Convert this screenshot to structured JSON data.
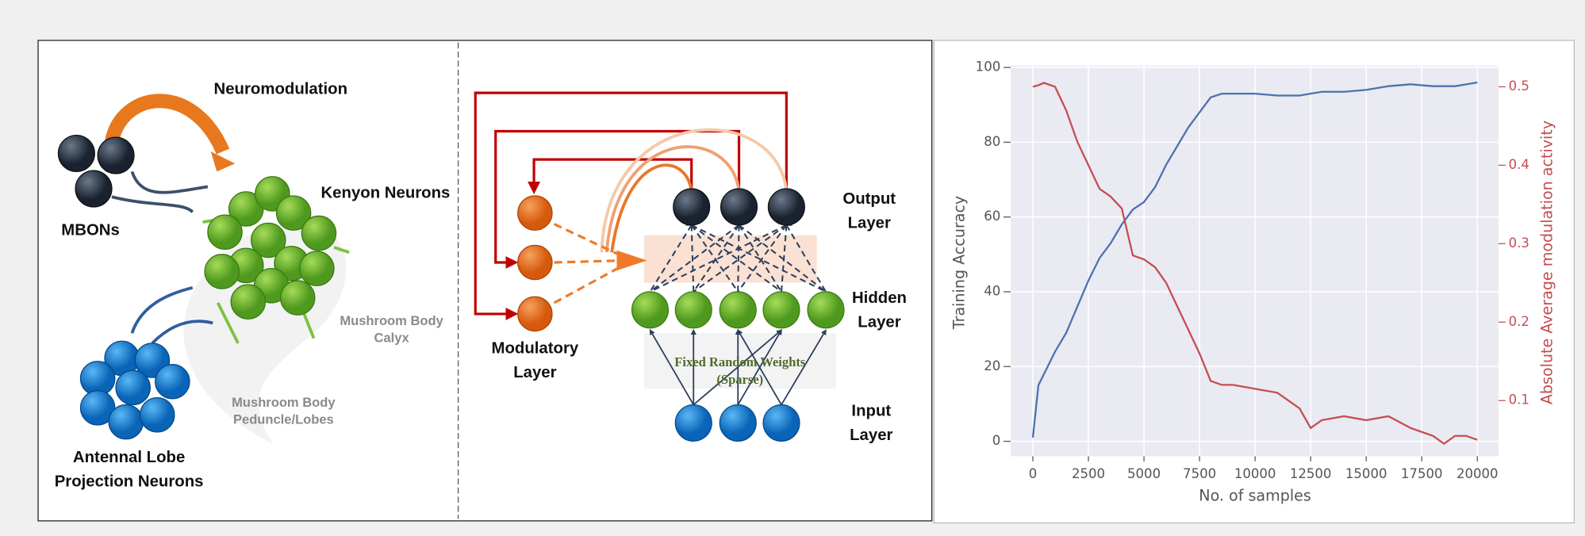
{
  "diagram": {
    "neuromodulation": "Neuromodulation",
    "kenyon": "Kenyon Neurons",
    "mbons": "MBONs",
    "calyx": [
      "Mushroom Body",
      "Calyx"
    ],
    "peduncle": [
      "Mushroom Body",
      "Peduncle/Lobes"
    ],
    "antennal": [
      "Antennal Lobe",
      "Projection Neurons"
    ],
    "output_layer": [
      "Output",
      "Layer"
    ],
    "hidden_layer": [
      "Hidden",
      "Layer"
    ],
    "modulatory_layer": [
      "Modulatory",
      "Layer"
    ],
    "fixed_weights": [
      "Fixed Random Weights",
      "(Sparse)"
    ],
    "input_layer": [
      "Input",
      "Layer"
    ]
  },
  "chart_data": {
    "type": "line",
    "xlabel": "No. of samples",
    "ylabel": "Training Accuracy",
    "y2label": "Absolute Average modulation activity",
    "xlim": [
      -1000,
      20950
    ],
    "ylim": [
      -4,
      100.5
    ],
    "y2lim": [
      0.029,
      0.527
    ],
    "xticks": [
      0,
      2500,
      5000,
      7500,
      10000,
      12500,
      15000,
      17500,
      20000
    ],
    "yticks": [
      0,
      20,
      40,
      60,
      80,
      100
    ],
    "y2ticks": [
      0.1,
      0.2,
      0.3,
      0.4,
      0.5
    ],
    "grid": true,
    "x": [
      0,
      250,
      500,
      1000,
      1500,
      2000,
      2500,
      3000,
      3500,
      4000,
      4500,
      5000,
      5500,
      6000,
      6500,
      7000,
      7500,
      8000,
      8500,
      9000,
      10000,
      11000,
      12000,
      12500,
      13000,
      14000,
      15000,
      16000,
      17000,
      18000,
      18500,
      19000,
      19500,
      20000
    ],
    "series": [
      {
        "color": "#4c72b0",
        "values": [
          1,
          15,
          18,
          24,
          29,
          36,
          43,
          49,
          53,
          58,
          62,
          64,
          68,
          74,
          79,
          84,
          88,
          92,
          93,
          93,
          93,
          92.5,
          92.5,
          93,
          93.5,
          93.5,
          94,
          95,
          95.5,
          95,
          95,
          95,
          95.5,
          96
        ]
      },
      {
        "color": "#c44e52",
        "axis": "y2",
        "values": [
          0.5,
          0.502,
          0.505,
          0.5,
          0.47,
          0.43,
          0.4,
          0.37,
          0.36,
          0.345,
          0.285,
          0.28,
          0.27,
          0.25,
          0.22,
          0.19,
          0.16,
          0.125,
          0.12,
          0.12,
          0.115,
          0.11,
          0.09,
          0.065,
          0.075,
          0.08,
          0.075,
          0.08,
          0.065,
          0.055,
          0.045,
          0.055,
          0.055,
          0.05
        ]
      }
    ]
  }
}
